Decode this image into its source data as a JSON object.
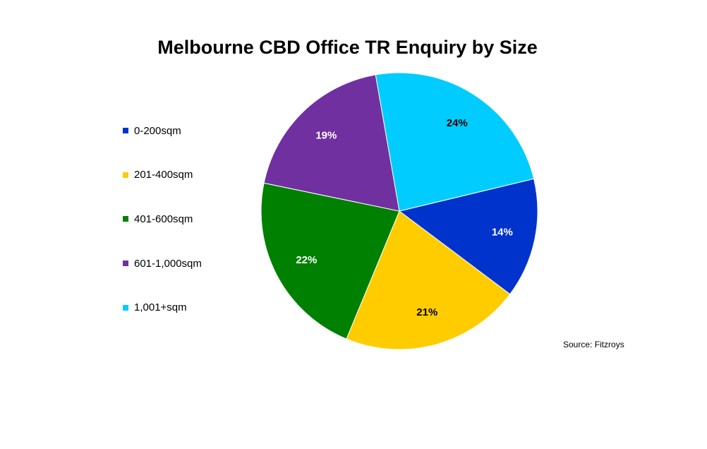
{
  "chart_data": {
    "type": "pie",
    "title": "Melbourne CBD Office TR Enquiry by Size",
    "categories": [
      "0-200sqm",
      "201-400sqm",
      "401-600sqm",
      "601-1,000sqm",
      "1,001+sqm"
    ],
    "values": [
      14,
      21,
      22,
      19,
      24
    ],
    "value_labels": [
      "14%",
      "21%",
      "22%",
      "19%",
      "24%"
    ],
    "colors": [
      "#0033CC",
      "#FFCC00",
      "#008000",
      "#7030A0",
      "#00CCFF"
    ],
    "label_colors": [
      "#ffffff",
      "#000000",
      "#ffffff",
      "#ffffff",
      "#000000"
    ],
    "legend_placement": "left",
    "source": "Source: Fitzroys"
  }
}
